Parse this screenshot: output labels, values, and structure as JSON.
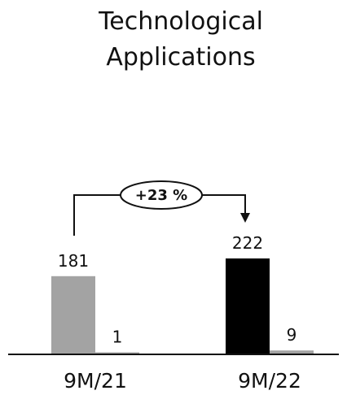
{
  "chart_data": {
    "type": "bar",
    "title_lines": [
      "Technological",
      "Applications"
    ],
    "categories": [
      "9M/21",
      "9M/22"
    ],
    "series": [
      {
        "values": [
          181,
          222
        ],
        "colors": [
          "#a3a3a3",
          "#000000"
        ]
      },
      {
        "values": [
          1,
          9
        ],
        "color": "#a3a3a3"
      }
    ],
    "annotation": "+23 %",
    "ylim": [
      0,
      222
    ]
  }
}
